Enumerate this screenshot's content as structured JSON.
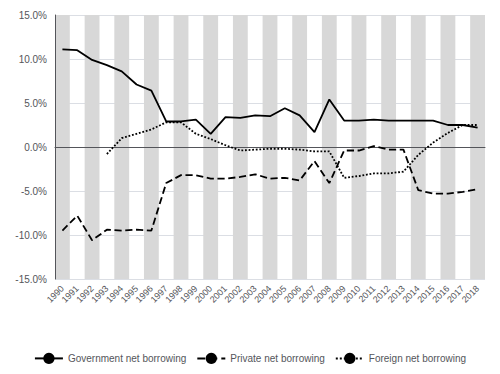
{
  "chart_data": {
    "type": "line",
    "categories": [
      "1990",
      "1991",
      "1992",
      "1993",
      "1994",
      "1995",
      "1996",
      "1997",
      "1998",
      "1999",
      "2000",
      "2001",
      "2002",
      "2003",
      "2004",
      "2005",
      "2006",
      "2007",
      "2008",
      "2009",
      "2010",
      "2011",
      "2012",
      "2013",
      "2014",
      "2015",
      "2016",
      "2017",
      "2018"
    ],
    "series": [
      {
        "name": "Government net borrowing",
        "color": "#000000",
        "line_style": "solid",
        "values": [
          11.1,
          11.0,
          9.9,
          9.3,
          8.6,
          7.1,
          6.4,
          2.9,
          2.9,
          3.1,
          1.5,
          3.4,
          3.3,
          3.6,
          3.5,
          4.4,
          3.6,
          1.7,
          5.4,
          3.0,
          3.0,
          3.1,
          3.0,
          3.0,
          3.0,
          3.0,
          2.5,
          2.5,
          2.2
        ]
      },
      {
        "name": "Private net borrowing",
        "color": "#000000",
        "line_style": "dashed",
        "values": [
          -9.5,
          -7.8,
          -10.6,
          -9.4,
          -9.5,
          -9.4,
          -9.5,
          -4.1,
          -3.2,
          -3.2,
          -3.6,
          -3.6,
          -3.4,
          -3.1,
          -3.6,
          -3.5,
          -3.8,
          -1.6,
          -4.1,
          -0.4,
          -0.4,
          0.1,
          -0.3,
          -0.3,
          -4.9,
          -5.3,
          -5.3,
          -5.1,
          -4.8
        ]
      },
      {
        "name": "Foreign net borrowing",
        "color": "#000000",
        "line_style": "dotted",
        "values": [
          null,
          null,
          null,
          -0.8,
          1.0,
          1.5,
          2.0,
          2.8,
          2.8,
          1.5,
          0.9,
          0.2,
          -0.4,
          -0.3,
          -0.2,
          -0.2,
          -0.3,
          -0.5,
          -0.5,
          -3.5,
          -3.3,
          -3.0,
          -3.0,
          -2.8,
          -0.9,
          0.5,
          1.6,
          2.5,
          2.5
        ]
      }
    ],
    "ylim": [
      -15.0,
      15.0
    ],
    "yticks": [
      {
        "value": -15.0,
        "label": "-15.0%"
      },
      {
        "value": -10.0,
        "label": "-10.0%"
      },
      {
        "value": -5.0,
        "label": "-5.0%"
      },
      {
        "value": 0.0,
        "label": "0.0%"
      },
      {
        "value": 5.0,
        "label": "5.0%"
      },
      {
        "value": 10.0,
        "label": "10.0%"
      },
      {
        "value": 15.0,
        "label": "15.0%"
      }
    ],
    "grid": true,
    "legend": "bottom"
  }
}
